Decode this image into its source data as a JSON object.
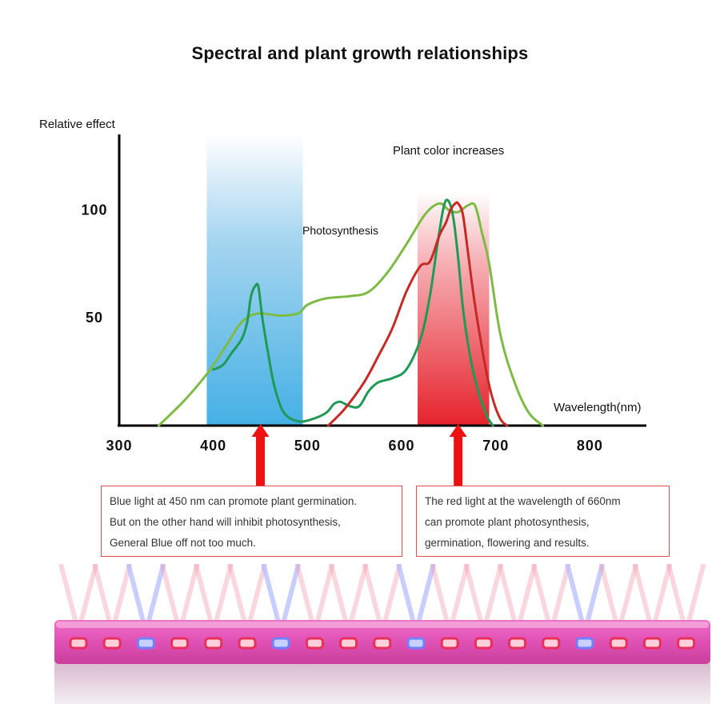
{
  "title": "Spectral and plant growth relationships",
  "chart_data": {
    "type": "line",
    "ylabel": "Relative effect",
    "xlabel": "Wavelength(nm)",
    "x_ticks": [
      300,
      400,
      500,
      600,
      700,
      800
    ],
    "y_ticks": [
      50,
      100
    ],
    "xlim": [
      300,
      860
    ],
    "ylim": [
      0,
      135
    ],
    "grid": false,
    "bands": [
      {
        "color": "blue",
        "range": [
          393,
          495
        ]
      },
      {
        "color": "red",
        "range": [
          617,
          693
        ]
      }
    ],
    "annotations": [
      {
        "text": "Photosynthesis",
        "x": 385,
        "y": 80
      },
      {
        "text": "Plant color increases",
        "x": 590,
        "y": 113
      }
    ],
    "arrows_at": [
      450,
      660
    ],
    "series": [
      {
        "color": "#7dbb45",
        "x": [
          342,
          370,
          395,
          415,
          430,
          447,
          470,
          490,
          500,
          520,
          545,
          565,
          585,
          605,
          625,
          640,
          650,
          660,
          670,
          678,
          685,
          693,
          705,
          720,
          735,
          750
        ],
        "y": [
          0,
          12,
          25,
          38,
          48,
          52,
          51,
          52,
          56,
          59,
          60,
          62,
          71,
          84,
          98,
          103,
          100,
          99,
          102,
          102,
          90,
          75,
          42,
          20,
          6,
          0
        ]
      },
      {
        "color": "#1f9a55",
        "x": [
          400,
          410,
          420,
          430,
          436,
          440,
          445,
          448,
          452,
          458,
          465,
          475,
          490,
          505,
          520,
          528,
          535,
          545,
          555,
          565,
          575,
          590,
          605,
          620,
          630,
          638,
          645,
          650,
          655,
          660,
          665,
          672,
          680,
          690,
          697
        ],
        "y": [
          26,
          28,
          34,
          40,
          48,
          60,
          65,
          64,
          50,
          34,
          18,
          6,
          2,
          3,
          6,
          10,
          11,
          9,
          9,
          16,
          20,
          22,
          26,
          40,
          60,
          84,
          102,
          104,
          96,
          78,
          55,
          34,
          18,
          5,
          0
        ]
      },
      {
        "color": "#c52a24",
        "x": [
          522,
          540,
          560,
          575,
          590,
          605,
          620,
          630,
          640,
          647,
          652,
          657,
          660,
          665,
          670,
          675,
          680,
          690,
          697,
          705,
          712
        ],
        "y": [
          0,
          8,
          20,
          32,
          45,
          62,
          74,
          76,
          88,
          94,
          100,
          103,
          103,
          98,
          82,
          65,
          50,
          25,
          12,
          3,
          0
        ]
      }
    ]
  },
  "notes": {
    "blue": [
      "Blue light at 450 nm can promote plant germination.",
      "But on the other hand will inhibit photosynthesis,",
      "General Blue off not too much."
    ],
    "red": [
      "The red light at the wavelength of 660nm",
      "can promote plant photosynthesis,",
      "germination, flowering and results."
    ]
  },
  "colors": {
    "axis": "#000000",
    "arrow": "#ee1111",
    "note_border": "#e05050",
    "blue_band": "#4fb0e0",
    "red_band": "#e8262e",
    "led_red": "#e8305a",
    "led_blue": "#7080ff",
    "lamp_body": "#e858b8"
  }
}
